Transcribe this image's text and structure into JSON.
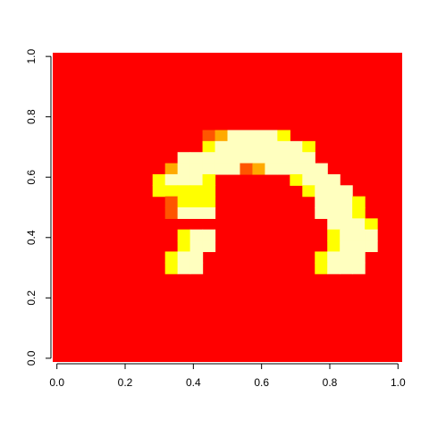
{
  "chart_data": {
    "type": "heatmap",
    "title": "",
    "xlabel": "",
    "ylabel": "",
    "xlim": [
      0,
      1
    ],
    "ylim": [
      0,
      1
    ],
    "x_ticks": [
      "0.0",
      "0.2",
      "0.4",
      "0.6",
      "0.8",
      "1.0"
    ],
    "y_ticks": [
      "0.0",
      "0.2",
      "0.4",
      "0.6",
      "0.8",
      "1.0"
    ],
    "n_cols": 28,
    "n_rows": 28,
    "row_order": "top-to-bottom",
    "palette": [
      "#FF0000",
      "#FF5500",
      "#FFAA00",
      "#FFFF00",
      "#FFFFBF",
      "#FFFFE0"
    ],
    "grid": [
      "0000000000000000000000000000",
      "0000000000000000000000000000",
      "0000000000000000000000000000",
      "0000000000000000000000000000",
      "0000000000000000000000000000",
      "0000000000000000000000000000",
      "0000000000000000000000000000",
      "0000000000001244443000000000",
      "0000000000003444444430000000",
      "0000000000444444444440000000",
      "0000000002444441244444000000",
      "0000000034443000000344400000",
      "0000000033333000000034440000",
      "0000000001333000000004443000",
      "0000000001444000000004443000",
      "0000000000000000000000444300",
      "0000000000344000000000344400",
      "0000000000344000000000344400",
      "0000000003440000000003444000",
      "0000000003440000000003444000",
      "0000000000000000000000000000",
      "0000000000000000000000000000",
      "0000000000000000000000000000",
      "0000000000000000000000000000",
      "0000000000000000000000000000",
      "0000000000000000000000000000",
      "0000000000000000000000000000",
      "0000000000000000000000000000"
    ]
  }
}
